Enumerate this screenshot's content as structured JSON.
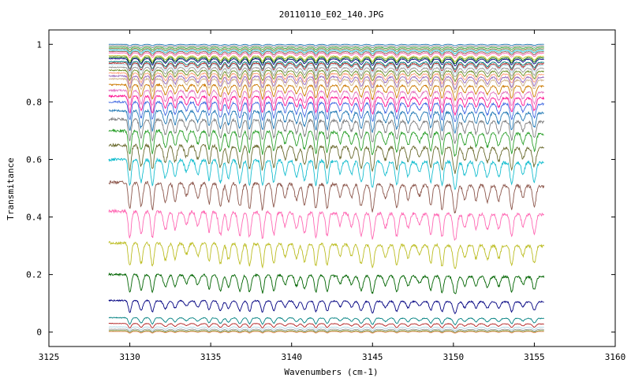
{
  "chart_data": {
    "type": "line",
    "title": "20110110_E02_140.JPG",
    "xlabel": "Wavenumbers (cm-1)",
    "ylabel": "Transmitance",
    "xlim": [
      3125,
      3160
    ],
    "ylim": [
      -0.05,
      1.05
    ],
    "x_ticks": [
      3125,
      3130,
      3135,
      3140,
      3145,
      3150,
      3155,
      3160
    ],
    "x_tick_labels": [
      "3125",
      "3130",
      "3135",
      "3140",
      "3145",
      "3150",
      "3155",
      "3160"
    ],
    "y_ticks": [
      0,
      0.2,
      0.4,
      0.6,
      0.8,
      1
    ],
    "y_tick_labels": [
      "0",
      "0.2",
      "0.4",
      "0.6",
      "0.8",
      "1"
    ],
    "x_range": [
      3128.7,
      3155.6
    ],
    "grid": false,
    "legend": "none",
    "absorption_lines": [
      3130.0,
      3130.7,
      3131.4,
      3132.2,
      3132.8,
      3133.5,
      3134.2,
      3134.9,
      3135.6,
      3136.1,
      3136.8,
      3137.4,
      3138.2,
      3138.9,
      3139.6,
      3140.3,
      3140.8,
      3141.5,
      3142.2,
      3143.0,
      3143.7,
      3144.3,
      3145.0,
      3145.8,
      3146.5,
      3147.2,
      3147.9,
      3148.6,
      3149.3,
      3150.1,
      3150.7,
      3151.4,
      3152.1,
      3152.8,
      3153.6,
      3154.3,
      3155.0
    ],
    "series_colors": [
      "#1f77b4",
      "#7f7f7f",
      "#2ca02c",
      "#6b6b2f",
      "#17becf",
      "#8c564b",
      "#ff69b4",
      "#bcbd22",
      "#006400",
      "#000080",
      "#008080",
      "#b22222",
      "#add8e6",
      "#999999",
      "#6b8e23",
      "#ffa07a",
      "#9467bd",
      "#d2b48c",
      "#cc7a00",
      "#e377c2",
      "#ff1493",
      "#4169e1"
    ],
    "series_baselines": [
      1.0,
      0.995,
      0.99,
      0.985,
      0.98,
      0.975,
      0.97,
      0.96,
      0.955,
      0.95,
      0.94,
      0.935,
      0.93,
      0.92,
      0.91,
      0.9,
      0.89,
      0.88,
      0.86,
      0.84,
      0.82,
      0.8,
      0.77,
      0.74,
      0.7,
      0.65,
      0.6,
      0.52,
      0.42,
      0.31,
      0.2,
      0.11,
      0.05,
      0.03,
      0.018,
      0.01,
      0.005,
      0.002
    ]
  }
}
